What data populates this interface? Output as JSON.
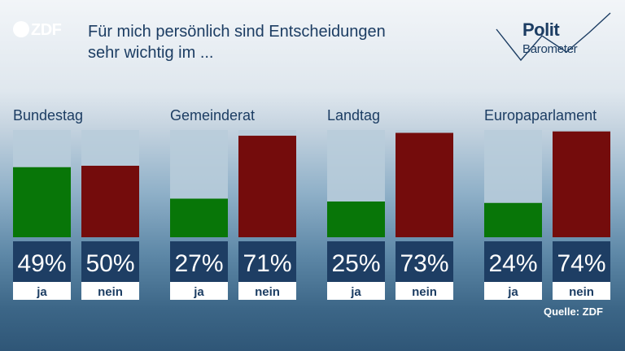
{
  "brand": {
    "broadcaster": "ZDF",
    "logo_line1": "Polit",
    "logo_line2": "Barometer"
  },
  "title_line1": "Für mich persönlich sind Entscheidungen",
  "title_line2": "sehr wichtig im ...",
  "source": "Quelle: ZDF",
  "colors": {
    "ja": "#087608",
    "nein": "#740c0c",
    "track": "#b9cddb",
    "label_box": "#1e3e64"
  },
  "chart_data": {
    "type": "bar",
    "title": "Für mich persönlich sind Entscheidungen sehr wichtig im ...",
    "categories": [
      "Bundestag",
      "Gemeinderat",
      "Landtag",
      "Europaparlament"
    ],
    "series": [
      {
        "name": "ja",
        "values": [
          49,
          27,
          25,
          24
        ]
      },
      {
        "name": "nein",
        "values": [
          50,
          71,
          73,
          74
        ]
      }
    ],
    "value_labels": {
      "ja": [
        "49%",
        "27%",
        "25%",
        "24%"
      ],
      "nein": [
        "50%",
        "71%",
        "73%",
        "74%"
      ]
    },
    "ylim": [
      0,
      75
    ],
    "unit": "%"
  }
}
